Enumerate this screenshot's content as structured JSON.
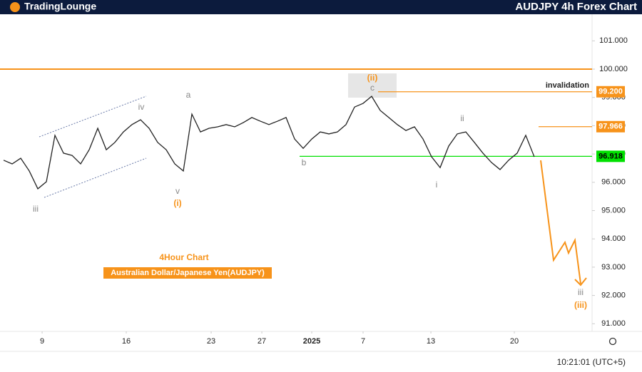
{
  "header": {
    "brand": "TradingLounge",
    "title": "AUDJPY 4h Forex Chart"
  },
  "chart_data": {
    "type": "line",
    "x": [
      0,
      1,
      2,
      3,
      4,
      5,
      6,
      7,
      8,
      9,
      10,
      11,
      12,
      13,
      14,
      15,
      16,
      17,
      18,
      19,
      20,
      21,
      22,
      23,
      24,
      25,
      26,
      27,
      28,
      29,
      30,
      31,
      32,
      33,
      34,
      35,
      36,
      37,
      38,
      39,
      40,
      41,
      42,
      43,
      44,
      45,
      46,
      47,
      48,
      49,
      50,
      51,
      52,
      53,
      54,
      55,
      56,
      57,
      58,
      59,
      60,
      61,
      62
    ],
    "series": [
      {
        "color": "#222222",
        "values": [
          96.78,
          96.65,
          96.85,
          96.4,
          95.77,
          96.02,
          97.66,
          97.03,
          96.95,
          96.65,
          97.15,
          97.91,
          97.15,
          97.41,
          97.78,
          98.04,
          98.21,
          97.91,
          97.41,
          97.15,
          96.65,
          96.4,
          98.41,
          97.78,
          97.91,
          97.96,
          98.04,
          97.96,
          98.11,
          98.29,
          98.16,
          98.04,
          98.16,
          98.29,
          97.53,
          97.2,
          97.53,
          97.78,
          97.71,
          97.78,
          98.04,
          98.66,
          98.79,
          99.04,
          98.54,
          98.29,
          98.04,
          97.83,
          97.96,
          97.53,
          96.9,
          96.52,
          97.28,
          97.71,
          97.78,
          97.41,
          97.03,
          96.7,
          96.45,
          96.78,
          97.03,
          97.66,
          96.9
        ]
      }
    ],
    "xlim": [
      -0.42,
      68.75
    ],
    "xticks": [
      {
        "value": 4.5,
        "label": "9"
      },
      {
        "value": 14.33,
        "label": "16"
      },
      {
        "value": 24.25,
        "label": "23"
      },
      {
        "value": 30.17,
        "label": "27"
      },
      {
        "value": 36,
        "label": "2025"
      },
      {
        "value": 42,
        "label": "7"
      },
      {
        "value": 49.92,
        "label": "13"
      },
      {
        "value": 59.67,
        "label": "20"
      }
    ],
    "ylim": [
      90.73,
      101.94
    ],
    "yticks": [
      {
        "value": 91,
        "label": "91.000"
      },
      {
        "value": 92,
        "label": "92.000"
      },
      {
        "value": 93,
        "label": "93.000"
      },
      {
        "value": 94,
        "label": "94.000"
      },
      {
        "value": 95,
        "label": "95.000"
      },
      {
        "value": 96,
        "label": "96.000"
      },
      {
        "value": 97,
        "label": "97.000"
      },
      {
        "value": 98,
        "label": "98.000"
      },
      {
        "value": 99,
        "label": "99.000"
      },
      {
        "value": 100,
        "label": "100.000"
      },
      {
        "value": 101,
        "label": "101.000"
      }
    ],
    "grid": false,
    "hlines": [
      {
        "value": 100,
        "color": "#f7931a"
      }
    ],
    "levels": [
      {
        "value": 99.2,
        "label": "99.200",
        "color": "#f7931a"
      },
      {
        "value": 97.966,
        "label": "97.966",
        "color": "#f7931a"
      },
      {
        "value": 96.918,
        "label": "96.918",
        "color": "#00e000"
      }
    ],
    "annotation": "invalidation",
    "wave_labels": [
      {
        "text": "iii",
        "color": "#888888"
      },
      {
        "text": "iv",
        "color": "#888888"
      },
      {
        "text": "v",
        "color": "#888888"
      },
      {
        "text": "(i)",
        "color": "#f7931a"
      },
      {
        "text": "a",
        "color": "#888888"
      },
      {
        "text": "b",
        "color": "#888888"
      },
      {
        "text": "(ii)",
        "color": "#f7931a"
      },
      {
        "text": "c",
        "color": "#888888"
      },
      {
        "text": "i",
        "color": "#888888"
      },
      {
        "text": "ii",
        "color": "#888888"
      },
      {
        "text": "iii",
        "color": "#888888"
      },
      {
        "text": "(iii)",
        "color": "#f7931a"
      }
    ],
    "chart_title": "4Hour Chart",
    "chart_subtitle": "Australian Dollar/Japanese Yen(AUDJPY)"
  },
  "footer": {
    "time": "10:21:01 (UTC+5)"
  }
}
